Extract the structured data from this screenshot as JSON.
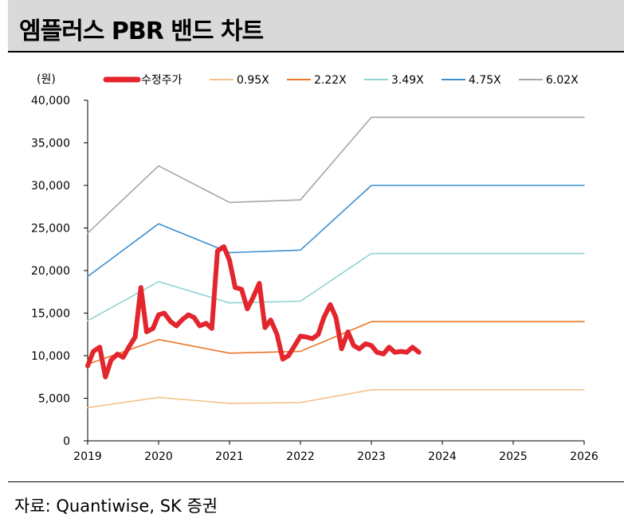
{
  "header": {
    "title": "엠플러스 PBR 밴드 차트"
  },
  "footer": {
    "source": "자료: Quantiwise, SK 증권"
  },
  "chart_data": {
    "type": "line",
    "title": "엠플러스 PBR 밴드 차트",
    "unit_label": "(원)",
    "xlabel": "",
    "ylabel": "(원)",
    "ylim": [
      0,
      40000
    ],
    "xlim": [
      2019,
      2026
    ],
    "y_ticks": [
      0,
      5000,
      10000,
      15000,
      20000,
      25000,
      30000,
      35000,
      40000
    ],
    "y_tick_labels": [
      "0",
      "5,000",
      "10,000",
      "15,000",
      "20,000",
      "25,000",
      "30,000",
      "35,000",
      "40,000"
    ],
    "x_ticks": [
      2019,
      2020,
      2021,
      2022,
      2023,
      2024,
      2025,
      2026
    ],
    "x_tick_labels": [
      "2019",
      "2020",
      "2021",
      "2022",
      "2023",
      "2024",
      "2025",
      "2026"
    ],
    "grid": false,
    "legend_position": "top",
    "series": [
      {
        "name": "수정주가",
        "color": "#e3262d",
        "width": 6,
        "x": [
          2019.0,
          2019.08,
          2019.17,
          2019.25,
          2019.33,
          2019.42,
          2019.5,
          2019.58,
          2019.67,
          2019.75,
          2019.83,
          2019.92,
          2020.0,
          2020.08,
          2020.17,
          2020.25,
          2020.33,
          2020.42,
          2020.5,
          2020.58,
          2020.67,
          2020.75,
          2020.83,
          2020.92,
          2021.0,
          2021.08,
          2021.17,
          2021.25,
          2021.33,
          2021.42,
          2021.5,
          2021.58,
          2021.67,
          2021.75,
          2021.83,
          2021.92,
          2022.0,
          2022.08,
          2022.17,
          2022.25,
          2022.33,
          2022.42,
          2022.5,
          2022.58,
          2022.67,
          2022.75,
          2022.83,
          2022.92,
          2023.0,
          2023.08,
          2023.17,
          2023.25,
          2023.33,
          2023.42,
          2023.5,
          2023.58,
          2023.67
        ],
        "values": [
          8800,
          10500,
          11000,
          7500,
          9500,
          10200,
          9800,
          11000,
          12200,
          18000,
          12800,
          13200,
          14800,
          15000,
          14000,
          13500,
          14200,
          14800,
          14500,
          13500,
          13800,
          13200,
          22300,
          22800,
          21200,
          18000,
          17800,
          15500,
          16800,
          18500,
          13300,
          14200,
          12500,
          9600,
          10000,
          11200,
          12300,
          12200,
          12000,
          12500,
          14500,
          16000,
          14500,
          10800,
          12800,
          11200,
          10800,
          11400,
          11200,
          10400,
          10200,
          11000,
          10400,
          10500,
          10400,
          11000,
          10400
        ]
      },
      {
        "name": "0.95X",
        "color": "#f5c28a",
        "width": 1.6,
        "x": [
          2019.0,
          2020.0,
          2021.0,
          2022.0,
          2023.0,
          2024.0,
          2025.0,
          2026.0
        ],
        "values": [
          3900,
          5100,
          4400,
          4500,
          6000,
          6000,
          6000,
          6000
        ]
      },
      {
        "name": "2.22X",
        "color": "#e8772a",
        "width": 1.6,
        "x": [
          2019.0,
          2020.0,
          2021.0,
          2022.0,
          2023.0,
          2024.0,
          2025.0,
          2026.0
        ],
        "values": [
          9000,
          11900,
          10300,
          10500,
          14000,
          14000,
          14000,
          14000
        ]
      },
      {
        "name": "3.49X",
        "color": "#8fd3d4",
        "width": 1.6,
        "x": [
          2019.0,
          2020.0,
          2021.0,
          2022.0,
          2023.0,
          2024.0,
          2025.0,
          2026.0
        ],
        "values": [
          14100,
          18700,
          16200,
          16400,
          22000,
          22000,
          22000,
          22000
        ]
      },
      {
        "name": "4.75X",
        "color": "#3d8fd0",
        "width": 1.6,
        "x": [
          2019.0,
          2020.0,
          2021.0,
          2022.0,
          2023.0,
          2024.0,
          2025.0,
          2026.0
        ],
        "values": [
          19300,
          25500,
          22100,
          22400,
          30000,
          30000,
          30000,
          30000
        ]
      },
      {
        "name": "6.02X",
        "color": "#a6a6a6",
        "width": 1.6,
        "x": [
          2019.0,
          2020.0,
          2021.0,
          2022.0,
          2023.0,
          2024.0,
          2025.0,
          2026.0
        ],
        "values": [
          24400,
          32300,
          28000,
          28300,
          38000,
          38000,
          38000,
          38000
        ]
      }
    ]
  }
}
